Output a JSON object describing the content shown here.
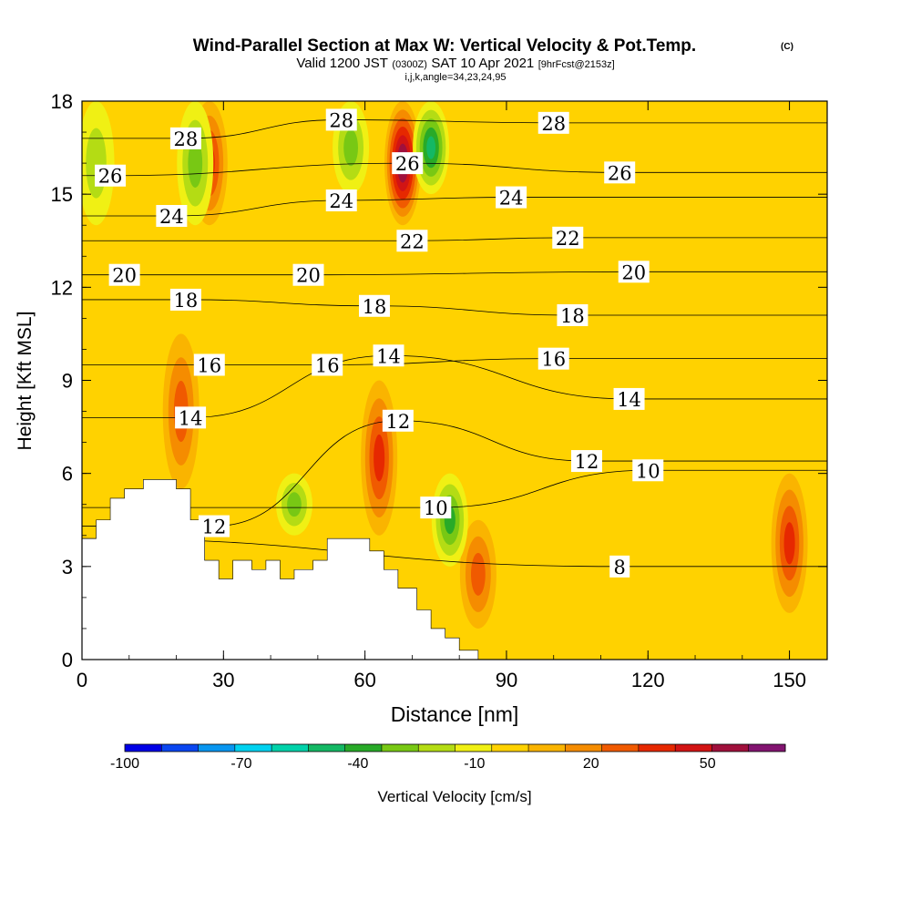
{
  "chart_data": {
    "type": "heatmap",
    "title": "Wind-Parallel Section at Max W: Vertical Velocity & Pot.Temp.",
    "title_mark": "(C)",
    "subtitle": {
      "valid": "Valid 1200 JST",
      "zulu": "(0300Z)",
      "date": "SAT 10 Apr 2021",
      "fcst": "[9hrFcst@2153z]"
    },
    "grid_info": "i,j,k,angle=34,23,24,95",
    "xlabel": "Distance [nm]",
    "ylabel": "Height [Kft MSL]",
    "xlim": [
      0,
      158
    ],
    "ylim": [
      0,
      18
    ],
    "xticks": [
      0,
      30,
      60,
      90,
      120,
      150
    ],
    "yticks": [
      0,
      3,
      6,
      9,
      12,
      15,
      18
    ],
    "colorbar": {
      "label": "Vertical Velocity [cm/s]",
      "tick_labels": [
        "-100",
        "-70",
        "-40",
        "-10",
        "20",
        "50"
      ],
      "tick_values": [
        -100,
        -70,
        -40,
        -10,
        20,
        50
      ],
      "range": [
        -100,
        70
      ],
      "step": 10,
      "colors": [
        "#0000e6",
        "#0a46f0",
        "#0896f0",
        "#00d2f0",
        "#00d2aa",
        "#14b864",
        "#28aa28",
        "#78c814",
        "#b4dc14",
        "#f0f014",
        "#ffd200",
        "#fab400",
        "#f58c00",
        "#f05a00",
        "#e62800",
        "#d21414",
        "#a0103c",
        "#821470"
      ]
    },
    "theta_contour_interval": 1,
    "theta_contour_labels": [
      {
        "x": 6,
        "y": 15.6,
        "value": "26"
      },
      {
        "x": 22,
        "y": 16.8,
        "value": "28"
      },
      {
        "x": 19,
        "y": 14.3,
        "value": "24"
      },
      {
        "x": 9,
        "y": 12.4,
        "value": "20"
      },
      {
        "x": 22,
        "y": 11.6,
        "value": "18"
      },
      {
        "x": 27,
        "y": 9.5,
        "value": "16"
      },
      {
        "x": 23,
        "y": 7.8,
        "value": "14"
      },
      {
        "x": 28,
        "y": 4.3,
        "value": "12"
      },
      {
        "x": 55,
        "y": 17.4,
        "value": "28"
      },
      {
        "x": 55,
        "y": 14.8,
        "value": "24"
      },
      {
        "x": 48,
        "y": 12.4,
        "value": "20"
      },
      {
        "x": 62,
        "y": 11.4,
        "value": "18"
      },
      {
        "x": 52,
        "y": 9.5,
        "value": "16"
      },
      {
        "x": 65,
        "y": 9.8,
        "value": "14"
      },
      {
        "x": 69,
        "y": 16.0,
        "value": "26"
      },
      {
        "x": 70,
        "y": 13.5,
        "value": "22"
      },
      {
        "x": 67,
        "y": 7.7,
        "value": "12"
      },
      {
        "x": 75,
        "y": 4.9,
        "value": "10"
      },
      {
        "x": 91,
        "y": 14.9,
        "value": "24"
      },
      {
        "x": 100,
        "y": 17.3,
        "value": "28"
      },
      {
        "x": 114,
        "y": 15.7,
        "value": "26"
      },
      {
        "x": 103,
        "y": 13.6,
        "value": "22"
      },
      {
        "x": 117,
        "y": 12.5,
        "value": "20"
      },
      {
        "x": 104,
        "y": 11.1,
        "value": "18"
      },
      {
        "x": 100,
        "y": 9.7,
        "value": "16"
      },
      {
        "x": 116,
        "y": 8.4,
        "value": "14"
      },
      {
        "x": 107,
        "y": 6.4,
        "value": "12"
      },
      {
        "x": 120,
        "y": 6.1,
        "value": "10"
      },
      {
        "x": 114,
        "y": 3.0,
        "value": "8"
      }
    ],
    "terrain_profile": [
      [
        0,
        3.9
      ],
      [
        3,
        3.9
      ],
      [
        3,
        4.5
      ],
      [
        6,
        4.5
      ],
      [
        6,
        5.2
      ],
      [
        9,
        5.2
      ],
      [
        9,
        5.5
      ],
      [
        13,
        5.5
      ],
      [
        13,
        5.8
      ],
      [
        20,
        5.8
      ],
      [
        20,
        5.5
      ],
      [
        23,
        5.5
      ],
      [
        23,
        4.5
      ],
      [
        26,
        4.5
      ],
      [
        26,
        3.2
      ],
      [
        29,
        3.2
      ],
      [
        29,
        2.6
      ],
      [
        32,
        2.6
      ],
      [
        32,
        3.2
      ],
      [
        36,
        3.2
      ],
      [
        36,
        2.9
      ],
      [
        39,
        2.9
      ],
      [
        39,
        3.2
      ],
      [
        42,
        3.2
      ],
      [
        42,
        2.6
      ],
      [
        45,
        2.6
      ],
      [
        45,
        2.9
      ],
      [
        49,
        2.9
      ],
      [
        49,
        3.2
      ],
      [
        52,
        3.2
      ],
      [
        52,
        3.9
      ],
      [
        61,
        3.9
      ],
      [
        61,
        3.5
      ],
      [
        64,
        3.5
      ],
      [
        64,
        2.9
      ],
      [
        67,
        2.9
      ],
      [
        67,
        2.3
      ],
      [
        71,
        2.3
      ],
      [
        71,
        1.6
      ],
      [
        74,
        1.6
      ],
      [
        74,
        1.0
      ],
      [
        77,
        1.0
      ],
      [
        77,
        0.7
      ],
      [
        80,
        0.7
      ],
      [
        80,
        0.3
      ],
      [
        84,
        0.3
      ],
      [
        84,
        0
      ]
    ],
    "updraft_cores_cm_s": [
      {
        "x": 27,
        "top_kft": 18,
        "bottom_kft": 14,
        "max": 40
      },
      {
        "x": 21,
        "top_kft": 10.5,
        "bottom_kft": 5.5,
        "max": 30
      },
      {
        "x": 68,
        "top_kft": 18,
        "bottom_kft": 14,
        "max": 70
      },
      {
        "x": 63,
        "top_kft": 9,
        "bottom_kft": 4,
        "max": 40
      },
      {
        "x": 84,
        "top_kft": 4.5,
        "bottom_kft": 1,
        "max": 30
      },
      {
        "x": 150,
        "top_kft": 6,
        "bottom_kft": 1.5,
        "max": 40
      }
    ],
    "downdraft_cores_cm_s": [
      {
        "x": 3,
        "top_kft": 18,
        "bottom_kft": 14,
        "min": -20
      },
      {
        "x": 24,
        "top_kft": 18,
        "bottom_kft": 14,
        "min": -30
      },
      {
        "x": 57,
        "top_kft": 18,
        "bottom_kft": 15,
        "min": -30
      },
      {
        "x": 74,
        "top_kft": 18,
        "bottom_kft": 15,
        "min": -50
      },
      {
        "x": 45,
        "top_kft": 6,
        "bottom_kft": 4,
        "min": -30
      },
      {
        "x": 78,
        "top_kft": 6,
        "bottom_kft": 3,
        "min": -40
      }
    ]
  }
}
